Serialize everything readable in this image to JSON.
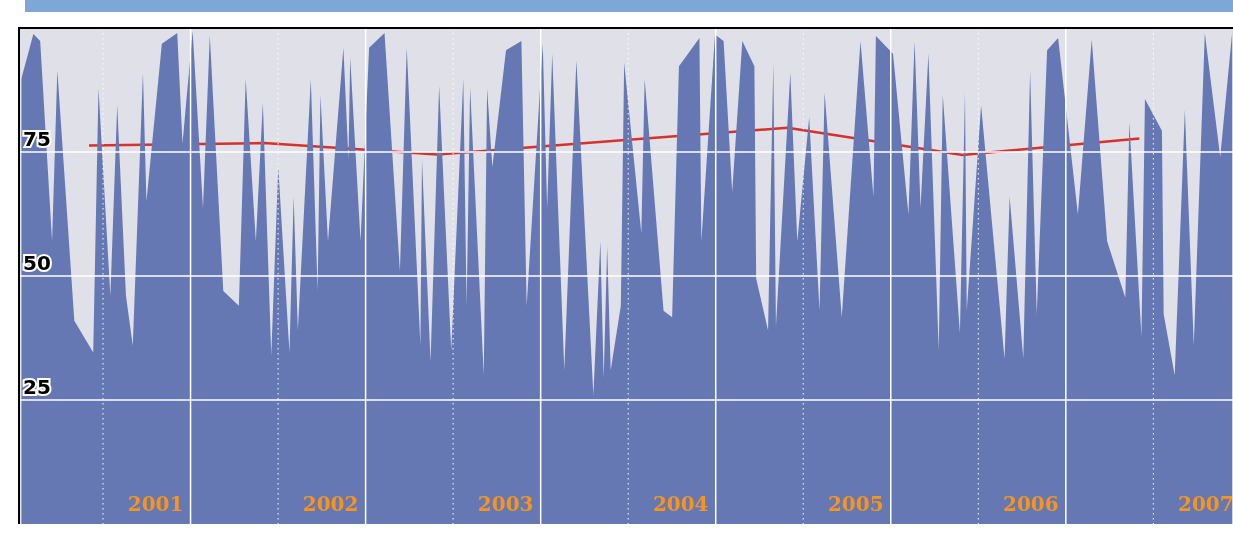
{
  "chart_data": {
    "type": "area",
    "xlim": [
      2000.52,
      2007.455
    ],
    "ylim": [
      0,
      100
    ],
    "yticks": [
      25,
      50,
      75
    ],
    "grid": true,
    "marker": "none",
    "xticks": [
      {
        "value": 2001,
        "label": null
      },
      {
        "value": 2001.3,
        "label": "2001"
      },
      {
        "value": 2001.5,
        "label": null
      },
      {
        "value": 2002,
        "label": null
      },
      {
        "value": 2002.3,
        "label": "2002"
      },
      {
        "value": 2002.5,
        "label": null
      },
      {
        "value": 2003,
        "label": null
      },
      {
        "value": 2003.3,
        "label": "2003"
      },
      {
        "value": 2003.5,
        "label": null
      },
      {
        "value": 2004,
        "label": null
      },
      {
        "value": 2004.3,
        "label": "2004"
      },
      {
        "value": 2004.5,
        "label": null
      },
      {
        "value": 2005,
        "label": null
      },
      {
        "value": 2005.3,
        "label": "2005"
      },
      {
        "value": 2005.5,
        "label": null
      },
      {
        "value": 2006,
        "label": null
      },
      {
        "value": 2006.3,
        "label": "2006"
      },
      {
        "value": 2006.5,
        "label": null
      },
      {
        "value": 2007,
        "label": null
      },
      {
        "value": 2007.3,
        "label": "2007"
      }
    ],
    "series": [
      {
        "color": "#6578b3",
        "x": [
          2000.533,
          2000.602,
          2000.641,
          2000.709,
          2000.739,
          2000.836,
          2000.944,
          2000.974,
          2001.042,
          2001.081,
          2001.131,
          2001.17,
          2001.228,
          2001.248,
          2001.336,
          2001.424,
          2001.454,
          2001.512,
          2001.571,
          2001.61,
          2001.687,
          2001.776,
          2001.815,
          2001.873,
          2001.913,
          2001.961,
          2002.001,
          2002.065,
          2002.089,
          2002.113,
          2002.187,
          2002.226,
          2002.242,
          2002.285,
          2002.373,
          2002.402,
          2002.412,
          2002.471,
          2002.52,
          2002.608,
          2002.696,
          2002.735,
          2002.813,
          2002.822,
          2002.871,
          2002.92,
          2002.989,
          2003.058,
          2003.077,
          2003.097,
          2003.175,
          2003.194,
          2003.224,
          2003.302,
          2003.39,
          2003.42,
          2003.512,
          2003.537,
          2003.566,
          2003.635,
          2003.704,
          2003.801,
          2003.841,
          2003.86,
          2003.88,
          2003.9,
          2003.958,
          2003.977,
          2004.075,
          2004.094,
          2004.202,
          2004.251,
          2004.29,
          2004.407,
          2004.418,
          2004.496,
          2004.545,
          2004.594,
          2004.652,
          2004.721,
          2004.731,
          2004.799,
          2004.829,
          2004.844,
          2004.926,
          2004.966,
          2005.034,
          2005.093,
          2005.122,
          2005.22,
          2005.327,
          2005.401,
          2005.415,
          2005.513,
          2005.601,
          2005.636,
          2005.67,
          2005.715,
          2005.774,
          2005.797,
          2005.895,
          2005.924,
          2005.934,
          2006.016,
          2006.15,
          2006.179,
          2006.257,
          2006.296,
          2006.334,
          2006.393,
          2006.456,
          2006.569,
          2006.648,
          2006.736,
          2006.84,
          2006.863,
          2006.932,
          2006.952,
          2007.049,
          2007.059,
          2007.122,
          2007.18,
          2007.231,
          2007.294,
          2007.382,
          2007.451
        ],
        "values": [
          89.7,
          98.8,
          97.4,
          57,
          91.5,
          41,
          34.6,
          87.8,
          46,
          84.5,
          46,
          36,
          91,
          65,
          96.8,
          99,
          76.7,
          99.4,
          63.7,
          98.5,
          47,
          44,
          89.7,
          57,
          85,
          34,
          72,
          34.6,
          66,
          39,
          89.7,
          47,
          86.5,
          57,
          96,
          73.5,
          94,
          57,
          96,
          99,
          51,
          96,
          36,
          73.5,
          32.7,
          88.3,
          35,
          89.7,
          44,
          88,
          30,
          87.8,
          72,
          95.5,
          97.4,
          44,
          96.8,
          63.7,
          94.8,
          31,
          93.5,
          26,
          57,
          29.4,
          56,
          31,
          44,
          93,
          58.6,
          89.7,
          43,
          41.7,
          92.3,
          98,
          57,
          98.7,
          97.4,
          67,
          97.4,
          92.3,
          49.5,
          39,
          93,
          39.8,
          91,
          57,
          82,
          43,
          87,
          41.7,
          97.4,
          66,
          98.4,
          94.8,
          62.4,
          97.4,
          63.7,
          94.8,
          35,
          86.5,
          38.5,
          87,
          43,
          84.4,
          33.3,
          66,
          33.3,
          91.3,
          42.3,
          95.5,
          98,
          62.4,
          97.7,
          57,
          45.6,
          81,
          37.8,
          85.7,
          79.3,
          42.3,
          30,
          83.5,
          36,
          99,
          74,
          99.4
        ]
      },
      {
        "type": "line",
        "color": "#d9302a",
        "x": [
          2000.92,
          2001.92,
          2002.91,
          2003.91,
          2004.91,
          2005.91,
          2006.92
        ],
        "values": [
          76.3,
          76.8,
          74.5,
          77.2,
          79.9,
          74.4,
          77.7
        ]
      }
    ]
  }
}
